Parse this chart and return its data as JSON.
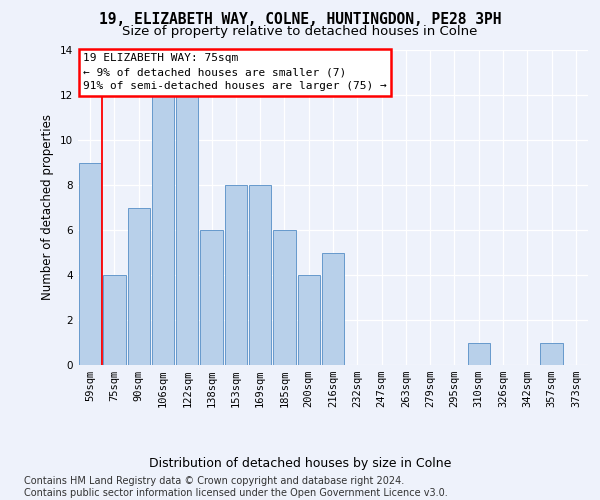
{
  "title": "19, ELIZABETH WAY, COLNE, HUNTINGDON, PE28 3PH",
  "subtitle": "Size of property relative to detached houses in Colne",
  "xlabel": "Distribution of detached houses by size in Colne",
  "ylabel": "Number of detached properties",
  "categories": [
    "59sqm",
    "75sqm",
    "90sqm",
    "106sqm",
    "122sqm",
    "138sqm",
    "153sqm",
    "169sqm",
    "185sqm",
    "200sqm",
    "216sqm",
    "232sqm",
    "247sqm",
    "263sqm",
    "279sqm",
    "295sqm",
    "310sqm",
    "326sqm",
    "342sqm",
    "357sqm",
    "373sqm"
  ],
  "values": [
    9,
    4,
    7,
    12,
    12,
    6,
    8,
    8,
    6,
    4,
    5,
    0,
    0,
    0,
    0,
    0,
    1,
    0,
    0,
    1,
    0
  ],
  "bar_color": "#b8d0ea",
  "bar_edge_color": "#6699cc",
  "red_line_x": 0.5,
  "annotation_text": "19 ELIZABETH WAY: 75sqm\n← 9% of detached houses are smaller (7)\n91% of semi-detached houses are larger (75) →",
  "annotation_box_facecolor": "white",
  "annotation_border_color": "red",
  "ylim": [
    0,
    14
  ],
  "yticks": [
    0,
    2,
    4,
    6,
    8,
    10,
    12,
    14
  ],
  "footer_line1": "Contains HM Land Registry data © Crown copyright and database right 2024.",
  "footer_line2": "Contains public sector information licensed under the Open Government Licence v3.0.",
  "background_color": "#eef2fb",
  "grid_color": "#ffffff",
  "title_fontsize": 10.5,
  "subtitle_fontsize": 9.5,
  "xlabel_fontsize": 9,
  "ylabel_fontsize": 8.5,
  "tick_fontsize": 7.5,
  "footer_fontsize": 7,
  "annotation_fontsize": 8
}
